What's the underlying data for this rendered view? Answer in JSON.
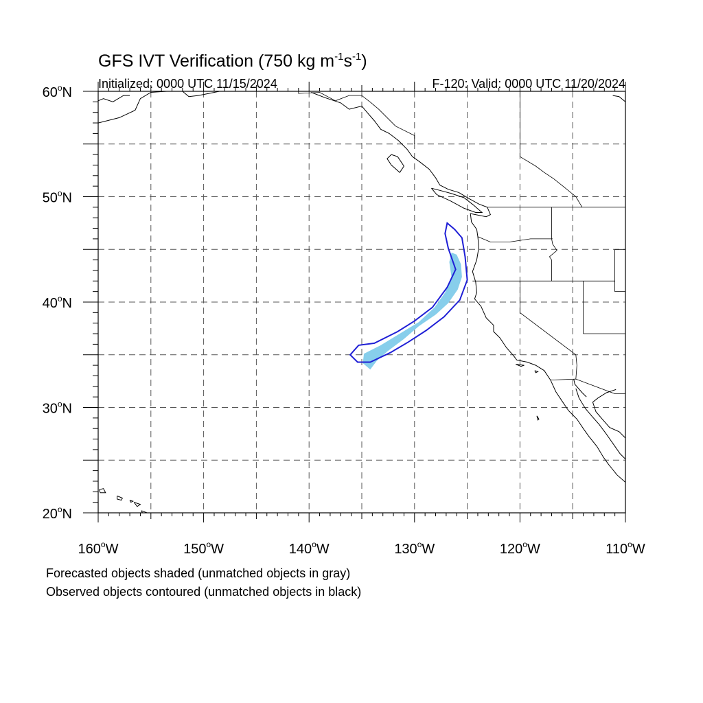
{
  "header": {
    "title_main": "GFS IVT Verification (750 kg m",
    "title_exp1": "-1",
    "title_mid": "s",
    "title_exp2": "-1",
    "title_end": ")",
    "initialized": "Initialized: 0000 UTC 11/15/2024",
    "valid": "F-120: Valid: 0000 UTC 11/20/2024"
  },
  "map": {
    "projection": "cylindrical-equidistant",
    "lon_range": [
      -160,
      -110
    ],
    "lat_range": [
      20,
      60
    ],
    "grid": "dashed gray every 5 degrees",
    "lat_labels": [
      {
        "lat": 60,
        "text": "60",
        "suffix": "N"
      },
      {
        "lat": 50,
        "text": "50",
        "suffix": "N"
      },
      {
        "lat": 40,
        "text": "40",
        "suffix": "N"
      },
      {
        "lat": 30,
        "text": "30",
        "suffix": "N"
      },
      {
        "lat": 20,
        "text": "20",
        "suffix": "N"
      }
    ],
    "lon_labels": [
      {
        "lon": -160,
        "text": "160",
        "suffix": "W"
      },
      {
        "lon": -150,
        "text": "150",
        "suffix": "W"
      },
      {
        "lon": -140,
        "text": "140",
        "suffix": "W"
      },
      {
        "lon": -130,
        "text": "130",
        "suffix": "W"
      },
      {
        "lon": -120,
        "text": "120",
        "suffix": "W"
      },
      {
        "lon": -110,
        "text": "110",
        "suffix": "W"
      }
    ],
    "colors": {
      "forecast_fill": "#87ceeb",
      "observed_contour": "#1f1fd6",
      "coastline": "#000000",
      "grid": "#555555"
    },
    "forecast_object": [
      [
        -126.5,
        44.7
      ],
      [
        -126.0,
        44.5
      ],
      [
        -125.6,
        43.6
      ],
      [
        -125.5,
        42.4
      ],
      [
        -125.9,
        41.2
      ],
      [
        -126.8,
        39.9
      ],
      [
        -128.0,
        38.8
      ],
      [
        -129.6,
        37.7
      ],
      [
        -131.0,
        36.5
      ],
      [
        -132.6,
        35.3
      ],
      [
        -133.6,
        34.4
      ],
      [
        -134.2,
        33.6
      ],
      [
        -134.9,
        34.2
      ],
      [
        -134.8,
        35.1
      ],
      [
        -133.2,
        35.9
      ],
      [
        -131.4,
        37.0
      ],
      [
        -129.6,
        38.1
      ],
      [
        -128.1,
        39.5
      ],
      [
        -127.1,
        40.9
      ],
      [
        -126.5,
        42.4
      ],
      [
        -126.7,
        43.8
      ],
      [
        -126.5,
        44.7
      ]
    ],
    "observed_object": [
      [
        -126.9,
        47.5
      ],
      [
        -126.2,
        46.9
      ],
      [
        -125.5,
        46.1
      ],
      [
        -125.2,
        44.3
      ],
      [
        -125.0,
        42.1
      ],
      [
        -125.7,
        40.2
      ],
      [
        -127.2,
        38.6
      ],
      [
        -128.9,
        37.3
      ],
      [
        -130.6,
        36.2
      ],
      [
        -132.3,
        35.2
      ],
      [
        -134.2,
        34.3
      ],
      [
        -135.4,
        34.3
      ],
      [
        -136.1,
        35.0
      ],
      [
        -135.3,
        35.9
      ],
      [
        -133.8,
        36.1
      ],
      [
        -131.6,
        37.2
      ],
      [
        -130.0,
        38.2
      ],
      [
        -128.3,
        39.5
      ],
      [
        -126.9,
        41.4
      ],
      [
        -126.1,
        43.1
      ],
      [
        -126.8,
        45.1
      ],
      [
        -127.1,
        46.5
      ],
      [
        -126.9,
        47.5
      ]
    ],
    "coastlines": [
      [
        [
          -160,
          57.0
        ],
        [
          -158.0,
          57.5
        ],
        [
          -156.5,
          58.2
        ],
        [
          -156.0,
          59.3
        ],
        [
          -155.0,
          59.9
        ],
        [
          -153.5,
          60.0
        ]
      ],
      [
        [
          -160,
          59.1
        ],
        [
          -159.5,
          59.3
        ],
        [
          -158.6,
          59.0
        ],
        [
          -157.6,
          59.6
        ],
        [
          -157.0,
          59.6
        ]
      ],
      [
        [
          -152.0,
          60.0
        ],
        [
          -151.4,
          59.5
        ],
        [
          -150.5,
          59.6
        ],
        [
          -149.5,
          59.8
        ],
        [
          -148.5,
          60.0
        ]
      ],
      [
        [
          -139.8,
          59.9
        ],
        [
          -138.5,
          59.4
        ],
        [
          -137.0,
          58.9
        ],
        [
          -136.2,
          58.3
        ],
        [
          -135.0,
          58.6
        ],
        [
          -134.5,
          58.0
        ],
        [
          -133.8,
          57.2
        ],
        [
          -133.2,
          56.4
        ],
        [
          -132.4,
          56.0
        ],
        [
          -131.5,
          55.3
        ],
        [
          -130.7,
          54.5
        ],
        [
          -130.2,
          53.8
        ],
        [
          -129.5,
          53.3
        ],
        [
          -128.6,
          52.6
        ],
        [
          -128.0,
          51.8
        ],
        [
          -127.6,
          51.1
        ],
        [
          -126.8,
          50.7
        ],
        [
          -125.8,
          50.4
        ],
        [
          -124.8,
          49.8
        ],
        [
          -123.9,
          49.3
        ],
        [
          -123.1,
          49.0
        ]
      ],
      [
        [
          -132.2,
          54.0
        ],
        [
          -131.6,
          53.8
        ],
        [
          -131.0,
          52.9
        ],
        [
          -131.4,
          52.3
        ],
        [
          -132.2,
          53.0
        ],
        [
          -132.6,
          53.6
        ],
        [
          -132.2,
          54.0
        ]
      ],
      [
        [
          -128.4,
          50.8
        ],
        [
          -127.6,
          50.6
        ],
        [
          -126.5,
          50.3
        ],
        [
          -125.3,
          49.9
        ],
        [
          -124.4,
          49.2
        ],
        [
          -123.6,
          48.5
        ],
        [
          -124.2,
          48.5
        ],
        [
          -125.3,
          48.9
        ],
        [
          -126.6,
          49.6
        ],
        [
          -127.9,
          50.2
        ],
        [
          -128.4,
          50.8
        ]
      ],
      [
        [
          -123.1,
          49.0
        ],
        [
          -122.8,
          48.3
        ],
        [
          -123.2,
          48.1
        ],
        [
          -124.7,
          48.4
        ],
        [
          -124.6,
          47.6
        ],
        [
          -124.1,
          46.9
        ],
        [
          -124.0,
          46.2
        ],
        [
          -123.9,
          45.2
        ],
        [
          -124.1,
          44.0
        ],
        [
          -124.5,
          42.9
        ],
        [
          -124.2,
          41.9
        ],
        [
          -124.1,
          40.9
        ],
        [
          -124.3,
          40.3
        ],
        [
          -123.7,
          39.6
        ],
        [
          -123.2,
          38.5
        ],
        [
          -122.5,
          37.8
        ],
        [
          -122.5,
          37.2
        ],
        [
          -121.9,
          36.6
        ],
        [
          -121.3,
          35.7
        ],
        [
          -120.6,
          34.9
        ],
        [
          -120.3,
          34.5
        ],
        [
          -119.3,
          34.3
        ],
        [
          -118.5,
          34.0
        ],
        [
          -117.7,
          33.5
        ],
        [
          -117.1,
          32.6
        ],
        [
          -116.6,
          31.5
        ],
        [
          -116.0,
          30.6
        ],
        [
          -115.4,
          29.7
        ],
        [
          -114.6,
          28.9
        ],
        [
          -114.0,
          28.0
        ],
        [
          -113.5,
          27.3
        ],
        [
          -112.7,
          26.3
        ],
        [
          -112.1,
          25.3
        ],
        [
          -111.6,
          24.6
        ],
        [
          -110.8,
          23.6
        ],
        [
          -110.0,
          22.9
        ]
      ],
      [
        [
          -114.7,
          31.8
        ],
        [
          -114.4,
          30.9
        ],
        [
          -113.8,
          29.9
        ],
        [
          -113.2,
          29.2
        ],
        [
          -112.5,
          28.4
        ],
        [
          -111.9,
          27.6
        ],
        [
          -111.2,
          26.6
        ],
        [
          -110.5,
          25.6
        ],
        [
          -110.0,
          25.1
        ]
      ],
      [
        [
          -110.9,
          31.7
        ],
        [
          -111.8,
          31.4
        ],
        [
          -112.6,
          30.9
        ],
        [
          -113.1,
          30.5
        ],
        [
          -112.8,
          29.6
        ],
        [
          -112.2,
          28.9
        ],
        [
          -111.5,
          28.1
        ],
        [
          -110.6,
          27.7
        ],
        [
          -110.0,
          27.1
        ]
      ],
      [
        [
          -114.9,
          32.7
        ],
        [
          -114.8,
          32.2
        ],
        [
          -114.1,
          31.4
        ],
        [
          -113.7,
          31.0
        ]
      ],
      [
        [
          -110.0,
          59.0
        ],
        [
          -110.6,
          59.5
        ],
        [
          -111.2,
          59.6
        ]
      ],
      [
        [
          -159.9,
          22.2
        ],
        [
          -159.5,
          22.3
        ],
        [
          -159.3,
          21.9
        ],
        [
          -159.8,
          21.9
        ],
        [
          -159.9,
          22.2
        ]
      ],
      [
        [
          -158.2,
          21.6
        ],
        [
          -157.7,
          21.4
        ],
        [
          -157.8,
          21.2
        ],
        [
          -158.2,
          21.3
        ],
        [
          -158.2,
          21.6
        ]
      ],
      [
        [
          -157.0,
          21.2
        ],
        [
          -156.7,
          21.1
        ],
        [
          -156.9,
          21.0
        ],
        [
          -157.0,
          21.2
        ]
      ],
      [
        [
          -156.6,
          21.0
        ],
        [
          -156.0,
          20.8
        ],
        [
          -156.3,
          20.6
        ],
        [
          -156.6,
          21.0
        ]
      ],
      [
        [
          -155.9,
          20.2
        ],
        [
          -155.1,
          19.9
        ],
        [
          -155.6,
          19.5
        ],
        [
          -155.9,
          20.2
        ]
      ],
      [
        [
          -118.6,
          33.5
        ],
        [
          -118.3,
          33.4
        ],
        [
          -118.5,
          33.3
        ],
        [
          -118.6,
          33.5
        ]
      ],
      [
        [
          -120.4,
          34.1
        ],
        [
          -119.6,
          34.0
        ],
        [
          -119.9,
          33.9
        ],
        [
          -120.4,
          34.1
        ]
      ],
      [
        [
          -118.4,
          29.2
        ],
        [
          -118.2,
          28.9
        ],
        [
          -118.3,
          28.8
        ],
        [
          -118.4,
          29.2
        ]
      ]
    ],
    "borders": [
      [
        [
          -123.1,
          49.0
        ],
        [
          -110.0,
          49.0
        ]
      ],
      [
        [
          -141.0,
          60.0
        ],
        [
          -141.0,
          59.8
        ],
        [
          -139.0,
          59.9
        ],
        [
          -137.5,
          59.1
        ],
        [
          -136.2,
          59.6
        ],
        [
          -135.0,
          59.6
        ],
        [
          -134.1,
          58.9
        ],
        [
          -133.4,
          58.3
        ],
        [
          -131.8,
          56.7
        ],
        [
          -130.0,
          55.8
        ],
        [
          -130.0,
          55.0
        ]
      ],
      [
        [
          -120.0,
          60.0
        ],
        [
          -120.0,
          53.8
        ],
        [
          -118.5,
          52.9
        ],
        [
          -117.7,
          52.3
        ],
        [
          -116.8,
          51.7
        ],
        [
          -115.8,
          50.9
        ],
        [
          -114.7,
          50.0
        ],
        [
          -114.1,
          49.0
        ]
      ],
      [
        [
          -124.5,
          42.0
        ],
        [
          -111.0,
          42.0
        ]
      ],
      [
        [
          -117.0,
          49.0
        ],
        [
          -117.0,
          46.0
        ],
        [
          -116.9,
          45.5
        ],
        [
          -116.5,
          44.9
        ],
        [
          -117.2,
          44.3
        ],
        [
          -117.0,
          44.0
        ],
        [
          -117.0,
          42.0
        ]
      ],
      [
        [
          -124.0,
          46.2
        ],
        [
          -122.8,
          45.7
        ],
        [
          -121.0,
          45.7
        ],
        [
          -119.0,
          46.0
        ],
        [
          -116.9,
          46.0
        ]
      ],
      [
        [
          -120.0,
          42.0
        ],
        [
          -120.0,
          39.0
        ],
        [
          -114.7,
          35.0
        ]
      ],
      [
        [
          -114.0,
          42.0
        ],
        [
          -114.0,
          37.0
        ]
      ],
      [
        [
          -114.0,
          37.0
        ],
        [
          -110.0,
          37.0
        ]
      ],
      [
        [
          -111.0,
          45.0
        ],
        [
          -111.0,
          41.0
        ],
        [
          -110.0,
          41.0
        ]
      ],
      [
        [
          -111.0,
          45.0
        ],
        [
          -110.0,
          45.0
        ]
      ],
      [
        [
          -114.7,
          35.0
        ],
        [
          -114.6,
          34.0
        ],
        [
          -114.7,
          32.7
        ]
      ],
      [
        [
          -117.1,
          32.6
        ],
        [
          -114.7,
          32.7
        ],
        [
          -111.0,
          31.3
        ],
        [
          -110.0,
          31.3
        ]
      ]
    ]
  },
  "footnotes": {
    "line1": "Forecasted objects shaded (unmatched objects in gray)",
    "line2": "Observed objects contoured (unmatched objects in black)"
  }
}
